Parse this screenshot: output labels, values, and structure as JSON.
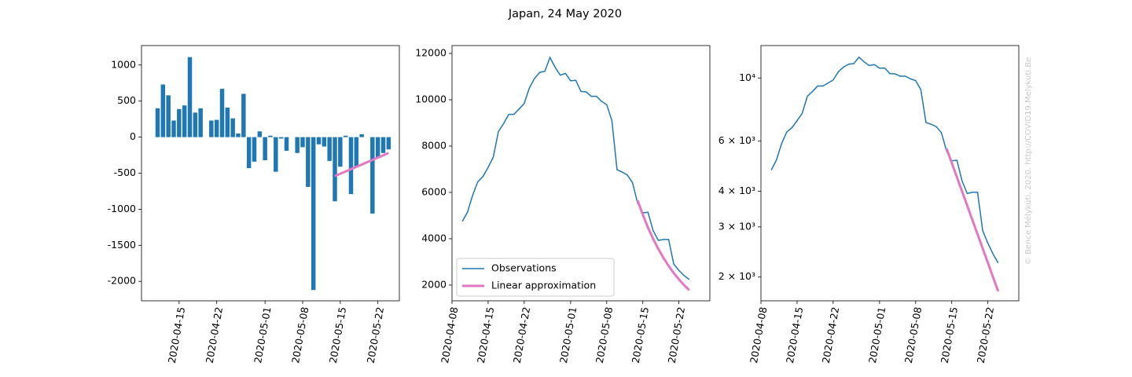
{
  "title": "Japan, 24 May 2020",
  "credit": "© Bence Mélykúti, 2020. http://COVID19.Melykuti.Be",
  "chart_data": [
    {
      "type": "bar",
      "x": [
        "2020-04-11",
        "2020-04-12",
        "2020-04-13",
        "2020-04-14",
        "2020-04-15",
        "2020-04-16",
        "2020-04-17",
        "2020-04-18",
        "2020-04-19",
        "2020-04-20",
        "2020-04-21",
        "2020-04-22",
        "2020-04-23",
        "2020-04-24",
        "2020-04-25",
        "2020-04-26",
        "2020-04-27",
        "2020-04-28",
        "2020-04-29",
        "2020-04-30",
        "2020-05-01",
        "2020-05-02",
        "2020-05-03",
        "2020-05-04",
        "2020-05-05",
        "2020-05-06",
        "2020-05-07",
        "2020-05-08",
        "2020-05-09",
        "2020-05-10",
        "2020-05-11",
        "2020-05-12",
        "2020-05-13",
        "2020-05-14",
        "2020-05-15",
        "2020-05-16",
        "2020-05-17",
        "2020-05-18",
        "2020-05-19",
        "2020-05-20",
        "2020-05-21",
        "2020-05-22",
        "2020-05-23",
        "2020-05-24"
      ],
      "values": [
        400,
        730,
        580,
        230,
        390,
        440,
        1110,
        340,
        400,
        0,
        230,
        240,
        670,
        410,
        260,
        50,
        600,
        -430,
        -340,
        80,
        -320,
        20,
        -480,
        -20,
        -190,
        0,
        -220,
        -140,
        -690,
        -2120,
        -100,
        -130,
        -330,
        -890,
        -410,
        20,
        -790,
        -420,
        40,
        0,
        -1060,
        -280,
        -220,
        -170
      ],
      "color": "#1f77b4",
      "fit": {
        "x": [
          "2020-05-14",
          "2020-05-15",
          "2020-05-16",
          "2020-05-17",
          "2020-05-18",
          "2020-05-19",
          "2020-05-20",
          "2020-05-21",
          "2020-05-22",
          "2020-05-23",
          "2020-05-24"
        ],
        "values": [
          -540,
          -508,
          -476,
          -444,
          -412,
          -380,
          -348,
          -316,
          -284,
          -252,
          -220
        ],
        "color": "#e377c2"
      },
      "xlim": [
        "2020-04-08",
        "2020-05-26"
      ],
      "xticks": [
        "2020-04-15",
        "2020-04-22",
        "2020-05-01",
        "2020-05-08",
        "2020-05-15",
        "2020-05-22"
      ],
      "ylim": [
        -2270,
        1270
      ],
      "yticks": [
        -2000,
        -1500,
        -1000,
        -500,
        0,
        500,
        1000
      ]
    },
    {
      "type": "line",
      "series": [
        {
          "name": "Observations",
          "color": "#1f77b4",
          "width": 1.5,
          "x": [
            "2020-04-10",
            "2020-04-11",
            "2020-04-12",
            "2020-04-13",
            "2020-04-14",
            "2020-04-15",
            "2020-04-16",
            "2020-04-17",
            "2020-04-18",
            "2020-04-19",
            "2020-04-20",
            "2020-04-21",
            "2020-04-22",
            "2020-04-23",
            "2020-04-24",
            "2020-04-25",
            "2020-04-26",
            "2020-04-27",
            "2020-04-28",
            "2020-04-29",
            "2020-04-30",
            "2020-05-01",
            "2020-05-02",
            "2020-05-03",
            "2020-05-04",
            "2020-05-05",
            "2020-05-06",
            "2020-05-07",
            "2020-05-08",
            "2020-05-09",
            "2020-05-10",
            "2020-05-11",
            "2020-05-12",
            "2020-05-13",
            "2020-05-14",
            "2020-05-15",
            "2020-05-16",
            "2020-05-17",
            "2020-05-18",
            "2020-05-19",
            "2020-05-20",
            "2020-05-21",
            "2020-05-22",
            "2020-05-23",
            "2020-05-24"
          ],
          "values": [
            4750,
            5150,
            5880,
            6460,
            6690,
            7080,
            7520,
            8630,
            8970,
            9370,
            9370,
            9600,
            9840,
            10510,
            10920,
            11180,
            11230,
            11830,
            11400,
            11060,
            11140,
            10820,
            10840,
            10360,
            10340,
            10150,
            10150,
            9930,
            9790,
            9100,
            6980,
            6880,
            6750,
            6420,
            5530,
            5120,
            5140,
            4350,
            3930,
            3970,
            3970,
            2910,
            2630,
            2410,
            2240
          ]
        },
        {
          "name": "Linear approximation",
          "color": "#e377c2",
          "width": 3,
          "x": [
            "2020-05-14",
            "2020-05-15",
            "2020-05-16",
            "2020-05-17",
            "2020-05-18",
            "2020-05-19",
            "2020-05-20",
            "2020-05-21",
            "2020-05-22",
            "2020-05-23",
            "2020-05-24"
          ],
          "values": [
            5650,
            5034,
            4486,
            3997,
            3561,
            3173,
            2827,
            2519,
            2245,
            2000,
            1782
          ]
        }
      ],
      "legend": "lower left",
      "xlim": [
        "2020-04-08",
        "2020-05-28"
      ],
      "xticks": [
        "2020-04-08",
        "2020-04-15",
        "2020-04-22",
        "2020-05-01",
        "2020-05-08",
        "2020-05-15",
        "2020-05-22"
      ],
      "ylim": [
        1320,
        12340
      ],
      "yticks": [
        2000,
        4000,
        6000,
        8000,
        10000,
        12000
      ]
    },
    {
      "type": "line",
      "log_scale": true,
      "series": [
        {
          "color": "#1f77b4",
          "width": 1.5,
          "x": [
            "2020-04-10",
            "2020-04-11",
            "2020-04-12",
            "2020-04-13",
            "2020-04-14",
            "2020-04-15",
            "2020-04-16",
            "2020-04-17",
            "2020-04-18",
            "2020-04-19",
            "2020-04-20",
            "2020-04-21",
            "2020-04-22",
            "2020-04-23",
            "2020-04-24",
            "2020-04-25",
            "2020-04-26",
            "2020-04-27",
            "2020-04-28",
            "2020-04-29",
            "2020-04-30",
            "2020-05-01",
            "2020-05-02",
            "2020-05-03",
            "2020-05-04",
            "2020-05-05",
            "2020-05-06",
            "2020-05-07",
            "2020-05-08",
            "2020-05-09",
            "2020-05-10",
            "2020-05-11",
            "2020-05-12",
            "2020-05-13",
            "2020-05-14",
            "2020-05-15",
            "2020-05-16",
            "2020-05-17",
            "2020-05-18",
            "2020-05-19",
            "2020-05-20",
            "2020-05-21",
            "2020-05-22",
            "2020-05-23",
            "2020-05-24"
          ],
          "values": [
            4750,
            5150,
            5880,
            6460,
            6690,
            7080,
            7520,
            8630,
            8970,
            9370,
            9370,
            9600,
            9840,
            10510,
            10920,
            11180,
            11230,
            11830,
            11400,
            11060,
            11140,
            10820,
            10840,
            10360,
            10340,
            10150,
            10150,
            9930,
            9790,
            9100,
            6980,
            6880,
            6750,
            6420,
            5530,
            5120,
            5140,
            4350,
            3930,
            3970,
            3970,
            2910,
            2630,
            2410,
            2240
          ]
        },
        {
          "color": "#e377c2",
          "width": 3,
          "x": [
            "2020-05-14",
            "2020-05-15",
            "2020-05-16",
            "2020-05-17",
            "2020-05-18",
            "2020-05-19",
            "2020-05-20",
            "2020-05-21",
            "2020-05-22",
            "2020-05-23",
            "2020-05-24"
          ],
          "values": [
            5650,
            5034,
            4486,
            3997,
            3561,
            3173,
            2827,
            2519,
            2245,
            2000,
            1782
          ]
        }
      ],
      "xlim": [
        "2020-04-08",
        "2020-05-28"
      ],
      "xticks": [
        "2020-04-08",
        "2020-04-15",
        "2020-04-22",
        "2020-05-01",
        "2020-05-08",
        "2020-05-15",
        "2020-05-22"
      ],
      "ylim": [
        1650,
        13000
      ],
      "yticks": [
        {
          "value": 2000,
          "label": "2 × 10³"
        },
        {
          "value": 3000,
          "label": "3 × 10³"
        },
        {
          "value": 4000,
          "label": "4 × 10³"
        },
        {
          "value": 6000,
          "label": "6 × 10³"
        },
        {
          "value": 10000,
          "label": "10⁴"
        }
      ]
    }
  ]
}
